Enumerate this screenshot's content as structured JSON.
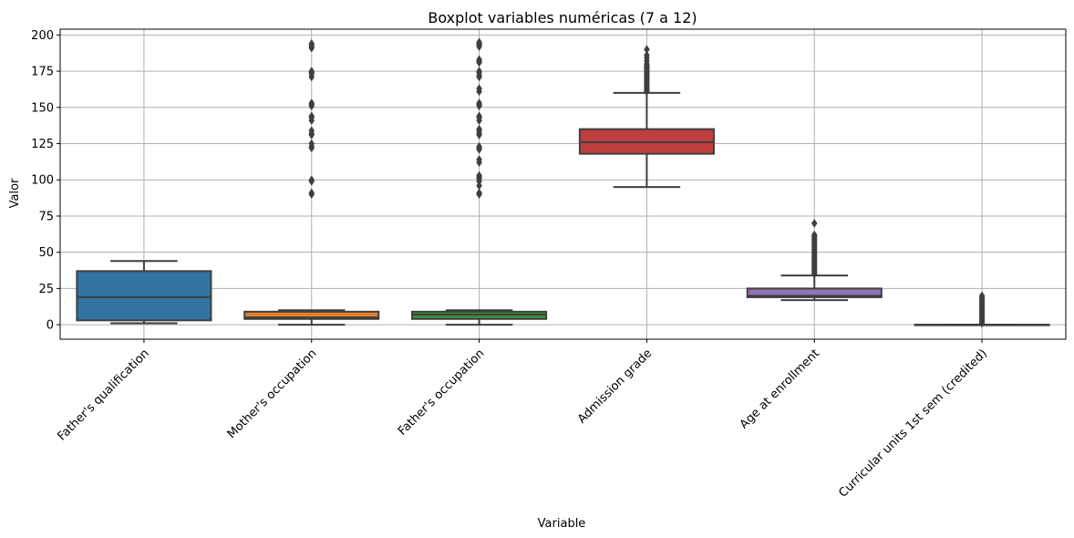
{
  "chart_data": {
    "type": "boxplot",
    "title": "Boxplot variables numéricas (7 a 12)",
    "xlabel": "Variable",
    "ylabel": "Valor",
    "ylim": [
      -10,
      204
    ],
    "yticks": [
      0,
      25,
      50,
      75,
      100,
      125,
      150,
      175,
      200
    ],
    "grid": true,
    "categories": [
      "Father's qualification",
      "Mother's occupation",
      "Father's occupation",
      "Admission grade",
      "Age at enrollment",
      "Curricular units 1st sem (credited)"
    ],
    "series": [
      {
        "color": "#3274a1",
        "whisker_low": 1,
        "q1": 3,
        "median": 19,
        "q3": 37,
        "whisker_high": 44,
        "outliers": []
      },
      {
        "color": "#e1812c",
        "whisker_low": 0,
        "q1": 4,
        "median": 5,
        "q3": 9,
        "whisker_high": 10,
        "outliers": [
          90,
          91,
          99,
          100,
          122,
          123,
          125,
          131,
          132,
          134,
          141,
          143,
          144,
          151,
          152,
          153,
          171,
          173,
          174,
          175,
          191,
          192,
          193,
          194
        ]
      },
      {
        "color": "#3a923a",
        "whisker_low": 0,
        "q1": 4,
        "median": 7,
        "q3": 9,
        "whisker_high": 10,
        "outliers": [
          90,
          91,
          96,
          99,
          101,
          102,
          103,
          112,
          114,
          121,
          122,
          123,
          131,
          132,
          134,
          135,
          141,
          143,
          144,
          151,
          152,
          153,
          161,
          163,
          171,
          172,
          174,
          175,
          181,
          182,
          183,
          192,
          193,
          194,
          195
        ]
      },
      {
        "color": "#c03d3e",
        "whisker_low": 95,
        "q1": 118,
        "median": 126,
        "q3": 135,
        "whisker_high": 160,
        "outliers": [
          161,
          162,
          163,
          164,
          165,
          166,
          167,
          168,
          169,
          170,
          171,
          172,
          173,
          174,
          175,
          176,
          177,
          178,
          179,
          180,
          182,
          184,
          186,
          190
        ]
      },
      {
        "color": "#9372b2",
        "whisker_low": 17,
        "q1": 19,
        "median": 20,
        "q3": 25,
        "whisker_high": 34,
        "outliers": [
          35,
          36,
          37,
          38,
          39,
          40,
          41,
          42,
          43,
          44,
          45,
          46,
          47,
          48,
          49,
          50,
          51,
          52,
          53,
          54,
          55,
          56,
          57,
          58,
          59,
          60,
          61,
          62,
          70
        ]
      },
      {
        "color": "#845b53",
        "whisker_low": 0,
        "q1": 0,
        "median": 0,
        "q3": 0,
        "whisker_high": 0,
        "outliers": [
          1,
          2,
          3,
          4,
          5,
          6,
          7,
          8,
          9,
          10,
          11,
          12,
          13,
          14,
          15,
          16,
          17,
          18,
          19,
          20
        ]
      }
    ]
  }
}
